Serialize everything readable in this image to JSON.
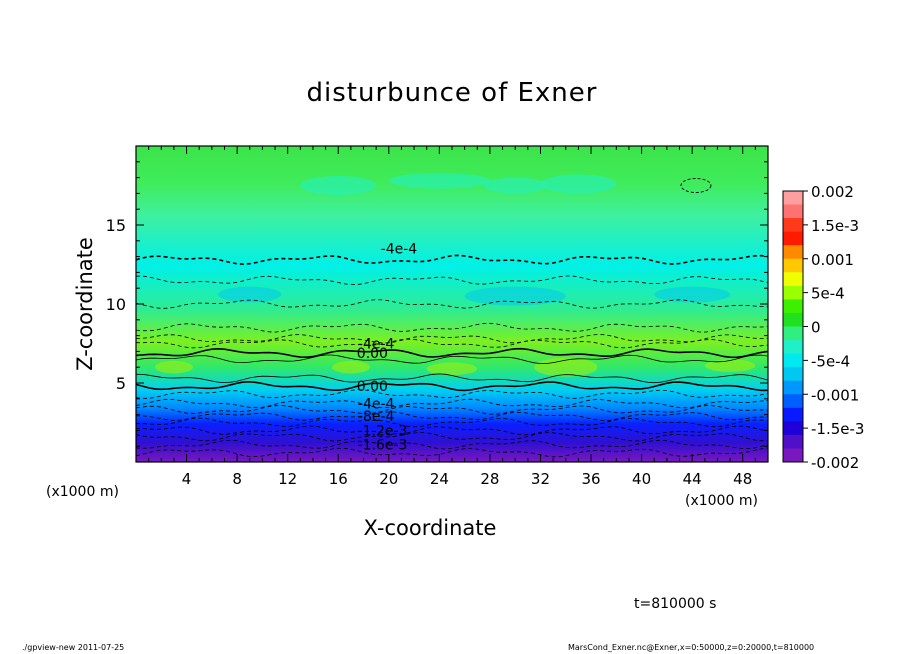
{
  "chart_data": {
    "type": "contour",
    "title": "disturbunce of Exner",
    "xlabel": "X-coordinate",
    "ylabel": "Z-coordinate",
    "x_unit_label": "(x1000 m)",
    "x_ticks": [
      4,
      8,
      12,
      16,
      20,
      24,
      28,
      32,
      36,
      40,
      44,
      48
    ],
    "y_ticks": [
      5,
      10,
      15
    ],
    "xlim": [
      0,
      50
    ],
    "ylim": [
      0,
      20
    ],
    "colorbar": {
      "tick_labels": [
        "0.002",
        "1.5e-3",
        "0.001",
        "5e-4",
        "0",
        "-5e-4",
        "-0.001",
        "-1.5e-3",
        "-0.002"
      ],
      "colors": [
        "#ff9e9e",
        "#ff7272",
        "#ff3a1a",
        "#ff1a00",
        "#ff8a00",
        "#ffc800",
        "#f0ff00",
        "#9cff00",
        "#3cf000",
        "#20e020",
        "#30ee80",
        "#20f0c8",
        "#00e8f0",
        "#00c8f0",
        "#0098ff",
        "#0060ff",
        "#0a1aff",
        "#2000d8",
        "#5010c8",
        "#7a18c0"
      ]
    },
    "contour_labels": [
      {
        "text": "-4e-4",
        "x": 20.8,
        "z": 13.5
      },
      {
        "text": "-4e-4",
        "x": 19.0,
        "z": 7.5
      },
      {
        "text": "0.00",
        "x": 18.7,
        "z": 6.9
      },
      {
        "text": "0.00",
        "x": 18.7,
        "z": 4.8
      },
      {
        "text": "-4e-4",
        "x": 19.0,
        "z": 3.7
      },
      {
        "text": "-8e-4",
        "x": 19.0,
        "z": 2.9
      },
      {
        "text": "-1.2e-3",
        "x": 19.5,
        "z": 2.0
      },
      {
        "text": "-1.6e-3",
        "x": 19.5,
        "z": 1.1
      }
    ],
    "contour_levels": [
      {
        "z": 12.8,
        "style": "dashed-bold"
      },
      {
        "z": 11.5,
        "style": "dashed"
      },
      {
        "z": 10.0,
        "style": "dashed"
      },
      {
        "z": 8.5,
        "style": "dashed"
      },
      {
        "z": 7.8,
        "style": "dashed"
      },
      {
        "z": 7.5,
        "style": "dashed"
      },
      {
        "z": 6.9,
        "style": "solid-bold"
      },
      {
        "z": 6.5,
        "style": "solid"
      },
      {
        "z": 5.3,
        "style": "solid"
      },
      {
        "z": 4.8,
        "style": "solid-bold"
      },
      {
        "z": 4.3,
        "style": "dashed"
      },
      {
        "z": 3.7,
        "style": "dashed"
      },
      {
        "z": 3.3,
        "style": "dashed"
      },
      {
        "z": 2.9,
        "style": "dashed"
      },
      {
        "z": 2.5,
        "style": "dashed"
      },
      {
        "z": 2.0,
        "style": "dashed"
      },
      {
        "z": 1.6,
        "style": "dashed"
      },
      {
        "z": 1.1,
        "style": "dashed"
      },
      {
        "z": 0.6,
        "style": "dashed"
      }
    ]
  },
  "time_label": "t=810000 s",
  "footer_left": "./gpview-new   2011-07-25",
  "footer_right": "MarsCond_Exner.nc@Exner,x=0:50000,z=0:20000,t=810000"
}
